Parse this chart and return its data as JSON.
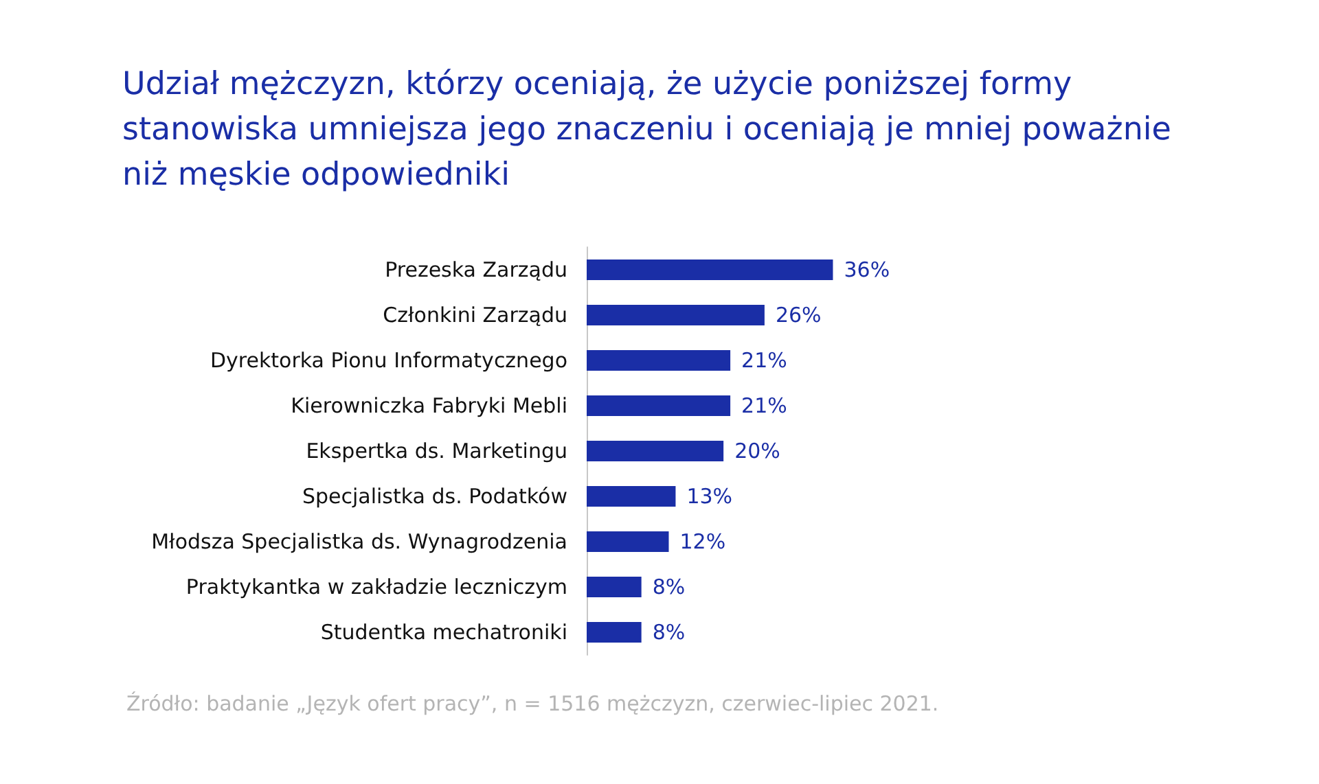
{
  "chart_data": {
    "type": "bar",
    "orientation": "horizontal",
    "title": "Udział mężczyzn, którzy oceniają, że użycie poniższej formy stanowiska umniejsza jego znaczeniu i oceniają je mniej poważnie niż męskie odpowiedniki",
    "categories": [
      "Prezeska Zarządu",
      "Członkini Zarządu",
      "Dyrektorka Pionu Informatycznego",
      "Kierowniczka Fabryki Mebli",
      "Ekspertka ds. Marketingu",
      "Specjalistka ds. Podatków",
      "Młodsza Specjalistka ds. Wynagrodzenia",
      "Praktykantka w zakładzie leczniczym",
      "Studentka mechatroniki"
    ],
    "values": [
      36,
      26,
      21,
      21,
      20,
      13,
      12,
      8,
      8
    ],
    "value_labels": [
      "36%",
      "26%",
      "21%",
      "21%",
      "20%",
      "13%",
      "12%",
      "8%",
      "8%"
    ],
    "color": "#1a2ea6",
    "grid": false,
    "tick_labels": "y",
    "annotations": [
      "Źródło: badanie „Język ofert pracy”, n = 1516 mężczyzn, czerwiec-lipiec 2021."
    ]
  }
}
